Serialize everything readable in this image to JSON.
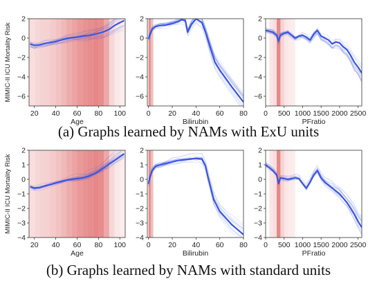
{
  "figure": {
    "captions": [
      "(a) Graphs learned by NAMs with ExU units",
      "(b) Graphs learned by NAMs with standard units"
    ],
    "colors": {
      "line": "#3a55e0",
      "shade": "#e06a6a",
      "axis": "#333333",
      "text": "#222222"
    }
  },
  "chart_data": [
    {
      "type": "line",
      "row": "a",
      "feature": "Age",
      "xlabel": "Age",
      "ylabel": "MIMIC-II ICU Mortality Risk",
      "xlim": [
        15,
        105
      ],
      "ylim": [
        -7,
        2
      ],
      "xticks": [
        20,
        40,
        60,
        80,
        100
      ],
      "yticks": [
        -6,
        -4,
        -2,
        0,
        2
      ],
      "series": [
        {
          "x": [
            16,
            20,
            25,
            30,
            35,
            40,
            45,
            50,
            55,
            60,
            65,
            70,
            75,
            80,
            85,
            90,
            95,
            100,
            104
          ],
          "y": [
            -0.6,
            -0.75,
            -0.7,
            -0.55,
            -0.45,
            -0.35,
            -0.2,
            -0.05,
            0.05,
            0.1,
            0.2,
            0.25,
            0.35,
            0.5,
            0.65,
            0.9,
            1.3,
            1.6,
            1.8
          ]
        }
      ],
      "density": [
        {
          "x": [
            15,
            20
          ],
          "level": 0.2
        },
        {
          "x": [
            20,
            25
          ],
          "level": 0.25
        },
        {
          "x": [
            25,
            30
          ],
          "level": 0.3
        },
        {
          "x": [
            30,
            35
          ],
          "level": 0.32
        },
        {
          "x": [
            35,
            40
          ],
          "level": 0.38
        },
        {
          "x": [
            40,
            45
          ],
          "level": 0.45
        },
        {
          "x": [
            45,
            50
          ],
          "level": 0.55
        },
        {
          "x": [
            50,
            55
          ],
          "level": 0.65
        },
        {
          "x": [
            55,
            60
          ],
          "level": 0.75
        },
        {
          "x": [
            60,
            65
          ],
          "level": 0.85
        },
        {
          "x": [
            65,
            70
          ],
          "level": 0.9
        },
        {
          "x": [
            70,
            75
          ],
          "level": 0.95
        },
        {
          "x": [
            75,
            80
          ],
          "level": 1.0
        },
        {
          "x": [
            80,
            85
          ],
          "level": 0.95
        },
        {
          "x": [
            85,
            90
          ],
          "level": 0.7
        },
        {
          "x": [
            90,
            95
          ],
          "level": 0.25
        },
        {
          "x": [
            95,
            100
          ],
          "level": 0.1
        },
        {
          "x": [
            100,
            105
          ],
          "level": 0.05
        }
      ]
    },
    {
      "type": "line",
      "row": "a",
      "feature": "Bilirubin",
      "xlabel": "Bilirubin",
      "xlim": [
        -1,
        80
      ],
      "ylim": [
        -7,
        2
      ],
      "xticks": [
        0,
        20,
        40,
        60,
        80
      ],
      "yticks": [
        -6,
        -4,
        -2,
        0,
        2
      ],
      "series": [
        {
          "x": [
            0,
            1,
            3,
            6,
            10,
            15,
            20,
            25,
            28,
            31,
            33,
            36,
            40,
            45,
            48,
            52,
            56,
            60,
            70,
            80
          ],
          "y": [
            -0.1,
            0.3,
            0.9,
            1.2,
            1.3,
            1.35,
            1.5,
            1.7,
            1.9,
            1.8,
            0.6,
            1.4,
            2.0,
            1.6,
            0.6,
            -1.0,
            -2.5,
            -3.3,
            -5.0,
            -6.6
          ]
        }
      ],
      "density": [
        {
          "x": [
            0,
            1
          ],
          "level": 1.0
        },
        {
          "x": [
            1,
            2
          ],
          "level": 0.9
        },
        {
          "x": [
            2,
            4
          ],
          "level": 0.5
        }
      ]
    },
    {
      "type": "line",
      "row": "a",
      "feature": "PFratio",
      "xlabel": "PFratio",
      "xlim": [
        0,
        2600
      ],
      "ylim": [
        -7,
        2
      ],
      "xticks": [
        0,
        500,
        1000,
        1500,
        2000,
        2500
      ],
      "yticks": [
        -6,
        -4,
        -2,
        0,
        2
      ],
      "series": [
        {
          "x": [
            0,
            100,
            200,
            300,
            350,
            400,
            500,
            600,
            700,
            800,
            900,
            1000,
            1100,
            1200,
            1300,
            1400,
            1500,
            1600,
            1700,
            1800,
            1900,
            2000,
            2100,
            2200,
            2300,
            2400,
            2500,
            2600
          ],
          "y": [
            0.8,
            0.7,
            0.6,
            0.3,
            -0.3,
            0.3,
            0.5,
            0.6,
            0.3,
            0.0,
            0.2,
            0.3,
            0.1,
            -0.2,
            0.4,
            0.8,
            0.2,
            0.0,
            -0.2,
            -0.6,
            -0.4,
            -0.5,
            -0.9,
            -1.2,
            -1.8,
            -2.5,
            -3.0,
            -3.6
          ]
        }
      ],
      "density": [
        {
          "x": [
            100,
            200
          ],
          "level": 0.12
        },
        {
          "x": [
            200,
            300
          ],
          "level": 0.2
        },
        {
          "x": [
            300,
            400
          ],
          "level": 1.0
        },
        {
          "x": [
            400,
            500
          ],
          "level": 0.3
        },
        {
          "x": [
            500,
            600
          ],
          "level": 0.12
        },
        {
          "x": [
            600,
            700
          ],
          "level": 0.08
        },
        {
          "x": [
            700,
            800
          ],
          "level": 0.06
        }
      ]
    },
    {
      "type": "line",
      "row": "b",
      "feature": "Age",
      "xlabel": "Age",
      "ylabel": "MIMIC-II ICU Mortality Risk",
      "xlim": [
        15,
        105
      ],
      "ylim": [
        -4,
        2
      ],
      "xticks": [
        20,
        40,
        60,
        80,
        100
      ],
      "yticks": [
        -4,
        -3,
        -2,
        -1,
        0,
        1,
        2
      ],
      "series": [
        {
          "x": [
            16,
            20,
            25,
            30,
            35,
            40,
            45,
            50,
            55,
            60,
            65,
            70,
            75,
            80,
            85,
            90,
            95,
            100,
            104
          ],
          "y": [
            -0.5,
            -0.6,
            -0.55,
            -0.45,
            -0.35,
            -0.25,
            -0.15,
            -0.05,
            0.0,
            0.05,
            0.1,
            0.2,
            0.35,
            0.55,
            0.8,
            1.05,
            1.3,
            1.55,
            1.75
          ]
        }
      ],
      "density": [
        {
          "x": [
            15,
            20
          ],
          "level": 0.2
        },
        {
          "x": [
            20,
            25
          ],
          "level": 0.25
        },
        {
          "x": [
            25,
            30
          ],
          "level": 0.3
        },
        {
          "x": [
            30,
            35
          ],
          "level": 0.32
        },
        {
          "x": [
            35,
            40
          ],
          "level": 0.38
        },
        {
          "x": [
            40,
            45
          ],
          "level": 0.45
        },
        {
          "x": [
            45,
            50
          ],
          "level": 0.55
        },
        {
          "x": [
            50,
            55
          ],
          "level": 0.65
        },
        {
          "x": [
            55,
            60
          ],
          "level": 0.75
        },
        {
          "x": [
            60,
            65
          ],
          "level": 0.85
        },
        {
          "x": [
            65,
            70
          ],
          "level": 0.9
        },
        {
          "x": [
            70,
            75
          ],
          "level": 0.95
        },
        {
          "x": [
            75,
            80
          ],
          "level": 1.0
        },
        {
          "x": [
            80,
            85
          ],
          "level": 0.95
        },
        {
          "x": [
            85,
            90
          ],
          "level": 0.7
        },
        {
          "x": [
            90,
            95
          ],
          "level": 0.25
        },
        {
          "x": [
            95,
            100
          ],
          "level": 0.1
        },
        {
          "x": [
            100,
            105
          ],
          "level": 0.05
        }
      ]
    },
    {
      "type": "line",
      "row": "b",
      "feature": "Bilirubin",
      "xlabel": "Bilirubin",
      "xlim": [
        -1,
        80
      ],
      "ylim": [
        -4,
        2
      ],
      "xticks": [
        0,
        20,
        40,
        60,
        80
      ],
      "yticks": [
        -4,
        -3,
        -2,
        -1,
        0,
        1,
        2
      ],
      "series": [
        {
          "x": [
            0,
            1,
            3,
            6,
            10,
            15,
            20,
            25,
            30,
            35,
            40,
            45,
            48,
            50,
            55,
            60,
            70,
            80
          ],
          "y": [
            -0.3,
            0.1,
            0.6,
            0.9,
            1.0,
            1.1,
            1.2,
            1.3,
            1.35,
            1.4,
            1.45,
            1.4,
            0.9,
            0.2,
            -1.4,
            -2.2,
            -3.1,
            -3.8
          ]
        }
      ],
      "density": [
        {
          "x": [
            0,
            1
          ],
          "level": 1.0
        },
        {
          "x": [
            1,
            2
          ],
          "level": 0.9
        },
        {
          "x": [
            2,
            4
          ],
          "level": 0.5
        }
      ]
    },
    {
      "type": "line",
      "row": "b",
      "feature": "PFratio",
      "xlabel": "PFratio",
      "xlim": [
        0,
        2600
      ],
      "ylim": [
        -4,
        2
      ],
      "xticks": [
        0,
        500,
        1000,
        1500,
        2000,
        2500
      ],
      "yticks": [
        -4,
        -3,
        -2,
        -1,
        0,
        1,
        2
      ],
      "series": [
        {
          "x": [
            0,
            100,
            200,
            300,
            350,
            400,
            500,
            600,
            700,
            800,
            900,
            1000,
            1100,
            1200,
            1300,
            1400,
            1500,
            1600,
            1700,
            1800,
            1900,
            2000,
            2100,
            2200,
            2300,
            2400,
            2500,
            2600
          ],
          "y": [
            1.0,
            0.8,
            0.6,
            0.3,
            -0.3,
            0.1,
            0.05,
            0.0,
            0.05,
            0.1,
            0.05,
            -0.3,
            -0.6,
            -0.2,
            0.3,
            0.6,
            0.1,
            -0.2,
            -0.4,
            -0.6,
            -0.8,
            -1.0,
            -1.3,
            -1.6,
            -2.0,
            -2.4,
            -2.9,
            -3.3
          ]
        }
      ],
      "density": [
        {
          "x": [
            100,
            200
          ],
          "level": 0.12
        },
        {
          "x": [
            200,
            300
          ],
          "level": 0.2
        },
        {
          "x": [
            300,
            400
          ],
          "level": 1.0
        },
        {
          "x": [
            400,
            500
          ],
          "level": 0.3
        },
        {
          "x": [
            500,
            600
          ],
          "level": 0.12
        },
        {
          "x": [
            600,
            700
          ],
          "level": 0.08
        },
        {
          "x": [
            700,
            800
          ],
          "level": 0.06
        }
      ]
    }
  ]
}
